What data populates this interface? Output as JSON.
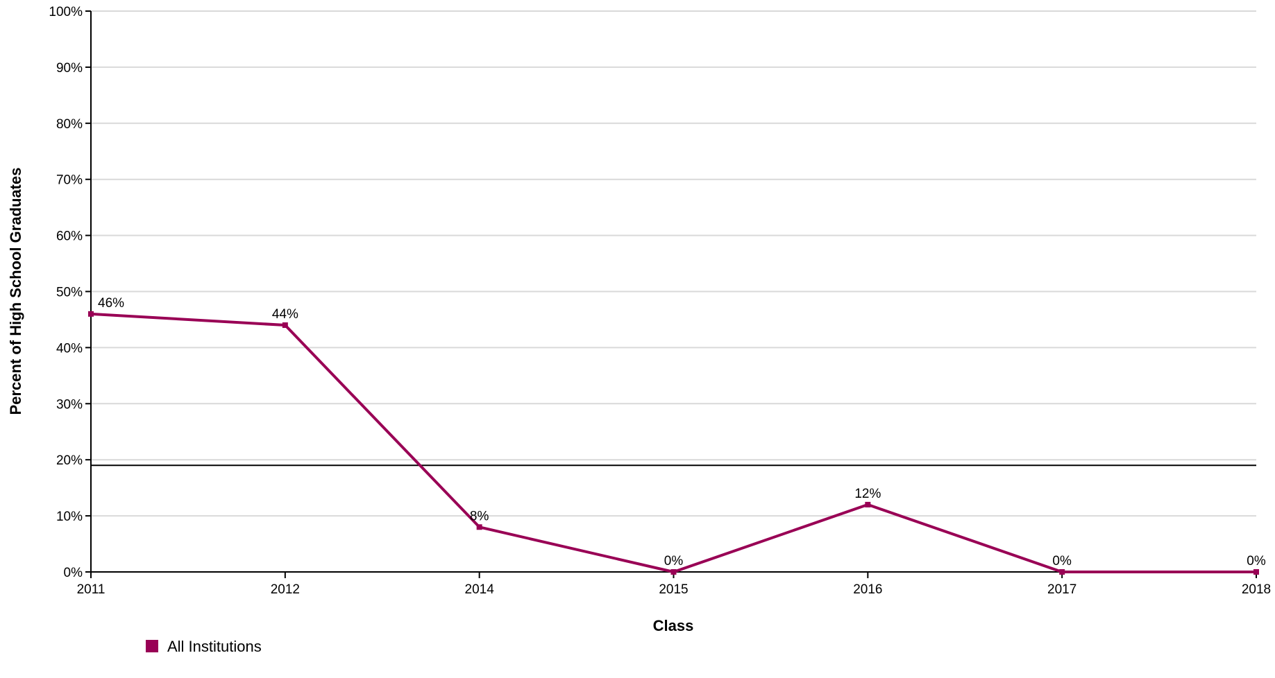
{
  "chart_data": {
    "type": "line",
    "title": "",
    "xlabel": "Class",
    "ylabel": "Percent of High School Graduates",
    "categories": [
      "2011",
      "2012",
      "2014",
      "2015",
      "2016",
      "2017",
      "2018"
    ],
    "series": [
      {
        "name": "All Institutions",
        "values": [
          46,
          44,
          8,
          0,
          12,
          0,
          0
        ],
        "labels": [
          "46%",
          "44%",
          "8%",
          "0%",
          "12%",
          "0%",
          "0%"
        ],
        "color": "#990055"
      }
    ],
    "y_ticks": [
      "0%",
      "10%",
      "20%",
      "30%",
      "40%",
      "50%",
      "60%",
      "70%",
      "80%",
      "90%",
      "100%"
    ],
    "ylim": [
      0,
      100
    ],
    "reference_line": 19,
    "grid": true,
    "legend_position": "bottom-left",
    "colors": {
      "grid": "#d9d9d9",
      "axis": "#000000",
      "series": "#990055"
    }
  }
}
